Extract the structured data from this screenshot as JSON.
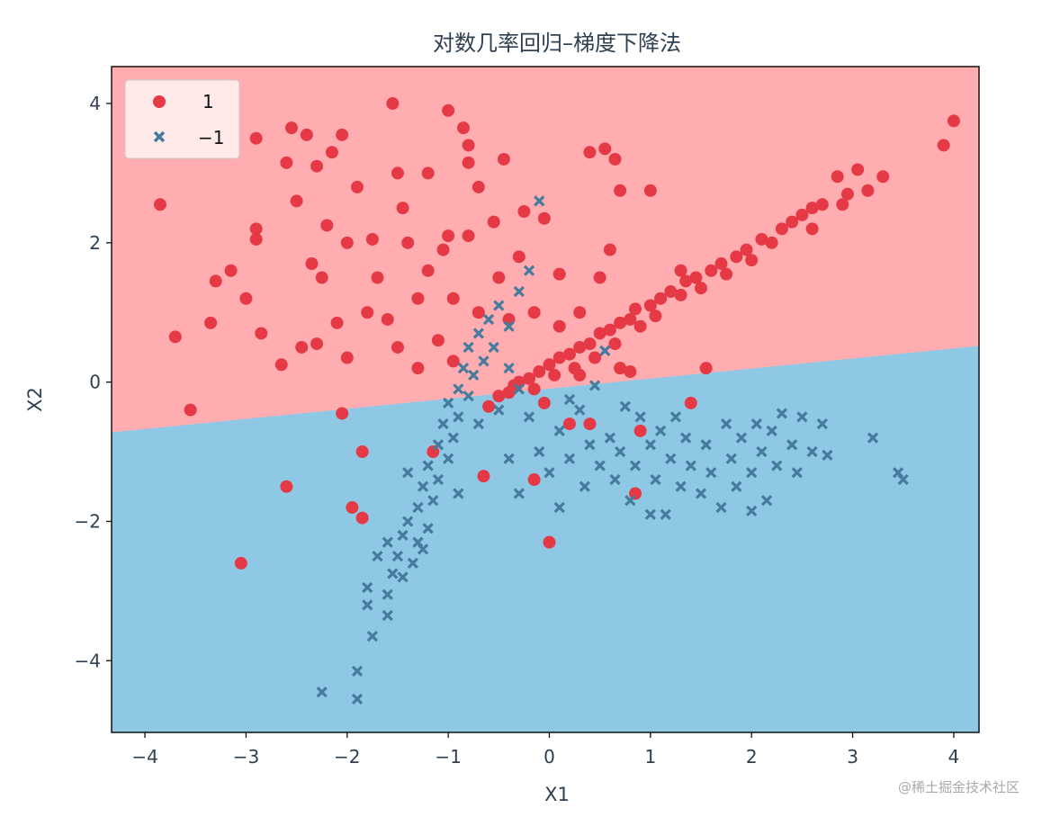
{
  "chart_data": {
    "type": "scatter",
    "title": "对数几率回归–梯度下降法",
    "xlabel": "X1",
    "ylabel": "X2",
    "xlim": [
      -4.33,
      4.25
    ],
    "ylim": [
      -5.03,
      4.53
    ],
    "xticks": [
      -4,
      -3,
      -2,
      -1,
      0,
      1,
      2,
      3,
      4
    ],
    "xtick_labels": [
      "−4",
      "−3",
      "−2",
      "−1",
      "0",
      "1",
      "2",
      "3",
      "4"
    ],
    "yticks": [
      4,
      2,
      0,
      -2,
      -4
    ],
    "ytick_labels": [
      "4",
      "2",
      "0",
      "−2",
      "−4"
    ],
    "legend_position": "top-left",
    "decision_boundary": {
      "x": [
        -4.33,
        4.25
      ],
      "y": [
        -0.72,
        0.52
      ]
    },
    "colors": {
      "region_pos": "#ffadb0",
      "region_neg": "#8fc8e5",
      "pos": "#e63946",
      "neg": "#457b9d",
      "text": "#2f4050"
    },
    "series": [
      {
        "name": "1",
        "marker": "circle",
        "points": [
          [
            -3.85,
            2.55
          ],
          [
            -3.7,
            0.65
          ],
          [
            -3.55,
            -0.4
          ],
          [
            -3.35,
            0.85
          ],
          [
            -3.3,
            1.45
          ],
          [
            -3.15,
            1.6
          ],
          [
            -3.05,
            -2.6
          ],
          [
            -3.0,
            1.2
          ],
          [
            -2.9,
            3.5
          ],
          [
            -2.9,
            2.2
          ],
          [
            -2.9,
            2.05
          ],
          [
            -2.85,
            0.7
          ],
          [
            -2.65,
            0.25
          ],
          [
            -2.6,
            -1.5
          ],
          [
            -2.6,
            3.15
          ],
          [
            -2.55,
            3.65
          ],
          [
            -2.5,
            2.6
          ],
          [
            -2.45,
            0.5
          ],
          [
            -2.4,
            3.55
          ],
          [
            -2.35,
            1.7
          ],
          [
            -2.3,
            3.1
          ],
          [
            -2.3,
            0.55
          ],
          [
            -2.25,
            1.5
          ],
          [
            -2.2,
            2.25
          ],
          [
            -2.15,
            3.3
          ],
          [
            -2.1,
            0.85
          ],
          [
            -2.05,
            3.55
          ],
          [
            -2.0,
            2.0
          ],
          [
            -2.0,
            0.35
          ],
          [
            -2.05,
            -0.45
          ],
          [
            -1.95,
            -1.8
          ],
          [
            -1.9,
            2.8
          ],
          [
            -1.85,
            -1.95
          ],
          [
            -1.85,
            -1.0
          ],
          [
            -1.8,
            1.0
          ],
          [
            -1.75,
            2.05
          ],
          [
            -1.7,
            1.5
          ],
          [
            -1.6,
            0.9
          ],
          [
            -1.5,
            3.0
          ],
          [
            -1.45,
            2.5
          ],
          [
            -1.4,
            2.0
          ],
          [
            -1.5,
            0.5
          ],
          [
            -1.55,
            4.0
          ],
          [
            -1.3,
            1.2
          ],
          [
            -1.3,
            0.2
          ],
          [
            -1.2,
            3.0
          ],
          [
            -1.2,
            1.6
          ],
          [
            -1.15,
            -1.0
          ],
          [
            -1.1,
            0.6
          ],
          [
            -1.05,
            1.9
          ],
          [
            -1.0,
            3.9
          ],
          [
            -1.0,
            2.1
          ],
          [
            -0.95,
            1.2
          ],
          [
            -0.95,
            0.3
          ],
          [
            -0.85,
            3.65
          ],
          [
            -0.8,
            3.15
          ],
          [
            -0.8,
            3.4
          ],
          [
            -0.8,
            2.1
          ],
          [
            -0.7,
            1.0
          ],
          [
            -0.7,
            2.8
          ],
          [
            -0.65,
            -1.35
          ],
          [
            -0.55,
            2.3
          ],
          [
            -0.5,
            1.5
          ],
          [
            -0.45,
            3.2
          ],
          [
            -0.4,
            0.9
          ],
          [
            -0.3,
            1.8
          ],
          [
            -0.25,
            2.45
          ],
          [
            -0.15,
            1.0
          ],
          [
            -0.15,
            -1.4
          ],
          [
            -0.05,
            2.35
          ],
          [
            0.0,
            -2.3
          ],
          [
            0.1,
            1.55
          ],
          [
            0.1,
            0.8
          ],
          [
            0.2,
            -0.6
          ],
          [
            0.4,
            -0.6
          ],
          [
            0.4,
            3.3
          ],
          [
            0.55,
            3.35
          ],
          [
            0.6,
            1.9
          ],
          [
            0.65,
            3.2
          ],
          [
            0.7,
            2.75
          ],
          [
            0.8,
            0.15
          ],
          [
            0.85,
            -1.6
          ],
          [
            0.9,
            -0.7
          ],
          [
            1.0,
            2.75
          ],
          [
            1.4,
            -0.3
          ],
          [
            1.55,
            0.2
          ],
          [
            3.9,
            3.4
          ],
          [
            4.0,
            3.75
          ],
          [
            0.5,
            1.5
          ],
          [
            0.3,
            1.0
          ],
          [
            -0.6,
            -0.35
          ],
          [
            -0.5,
            -0.2
          ],
          [
            -0.4,
            -0.15
          ],
          [
            -0.35,
            -0.05
          ],
          [
            -0.3,
            0.0
          ],
          [
            -0.2,
            0.05
          ],
          [
            -0.15,
            -0.1
          ],
          [
            -0.1,
            0.15
          ],
          [
            0.0,
            0.25
          ],
          [
            0.05,
            0.1
          ],
          [
            0.1,
            0.35
          ],
          [
            0.2,
            0.4
          ],
          [
            0.25,
            0.2
          ],
          [
            0.3,
            0.5
          ],
          [
            0.4,
            0.55
          ],
          [
            0.45,
            0.35
          ],
          [
            0.5,
            0.7
          ],
          [
            0.6,
            0.75
          ],
          [
            0.65,
            0.55
          ],
          [
            0.7,
            0.85
          ],
          [
            0.8,
            0.9
          ],
          [
            0.85,
            1.05
          ],
          [
            0.9,
            0.8
          ],
          [
            1.0,
            1.1
          ],
          [
            1.05,
            0.95
          ],
          [
            1.1,
            1.2
          ],
          [
            1.2,
            1.3
          ],
          [
            1.3,
            1.25
          ],
          [
            1.35,
            1.45
          ],
          [
            1.45,
            1.5
          ],
          [
            1.5,
            1.35
          ],
          [
            1.6,
            1.6
          ],
          [
            1.7,
            1.7
          ],
          [
            1.75,
            1.55
          ],
          [
            1.85,
            1.8
          ],
          [
            1.95,
            1.9
          ],
          [
            2.0,
            1.75
          ],
          [
            2.1,
            2.05
          ],
          [
            2.2,
            2.0
          ],
          [
            2.3,
            2.2
          ],
          [
            2.4,
            2.3
          ],
          [
            2.5,
            2.4
          ],
          [
            2.6,
            2.5
          ],
          [
            2.7,
            2.55
          ],
          [
            2.85,
            2.95
          ],
          [
            2.95,
            2.7
          ],
          [
            3.05,
            3.05
          ],
          [
            3.15,
            2.75
          ],
          [
            3.3,
            2.95
          ],
          [
            2.9,
            2.55
          ],
          [
            2.6,
            2.2
          ],
          [
            1.3,
            1.6
          ],
          [
            0.7,
            0.2
          ],
          [
            0.3,
            0.1
          ],
          [
            -0.05,
            -0.3
          ]
        ]
      },
      {
        "name": "−1",
        "marker": "x",
        "points": [
          [
            -2.25,
            -4.45
          ],
          [
            -1.9,
            -4.55
          ],
          [
            -1.9,
            -4.15
          ],
          [
            -1.75,
            -3.65
          ],
          [
            -1.8,
            -3.2
          ],
          [
            -1.8,
            -2.95
          ],
          [
            -1.6,
            -3.35
          ],
          [
            -1.6,
            -3.05
          ],
          [
            -1.55,
            -2.75
          ],
          [
            -1.5,
            -2.5
          ],
          [
            -1.45,
            -2.8
          ],
          [
            -1.45,
            -2.2
          ],
          [
            -1.4,
            -2.0
          ],
          [
            -1.35,
            -2.6
          ],
          [
            -1.3,
            -1.8
          ],
          [
            -1.3,
            -2.3
          ],
          [
            -1.25,
            -1.5
          ],
          [
            -1.2,
            -2.1
          ],
          [
            -1.2,
            -1.2
          ],
          [
            -1.15,
            -1.7
          ],
          [
            -1.1,
            -0.9
          ],
          [
            -1.1,
            -1.4
          ],
          [
            -1.05,
            -0.6
          ],
          [
            -1.0,
            -1.1
          ],
          [
            -1.0,
            -0.3
          ],
          [
            -0.95,
            -0.8
          ],
          [
            -0.9,
            -0.1
          ],
          [
            -0.9,
            -0.5
          ],
          [
            -0.85,
            0.2
          ],
          [
            -0.8,
            -0.2
          ],
          [
            -0.8,
            0.5
          ],
          [
            -0.75,
            0.1
          ],
          [
            -0.7,
            0.7
          ],
          [
            -0.65,
            0.3
          ],
          [
            -0.6,
            0.9
          ],
          [
            -0.55,
            0.5
          ],
          [
            -0.5,
            1.1
          ],
          [
            -0.4,
            0.8
          ],
          [
            -0.3,
            1.3
          ],
          [
            -0.2,
            1.6
          ],
          [
            -0.1,
            2.6
          ],
          [
            -0.7,
            -0.6
          ],
          [
            -0.5,
            -0.4
          ],
          [
            -0.4,
            0.2
          ],
          [
            -0.3,
            -0.1
          ],
          [
            -1.4,
            -1.3
          ],
          [
            -0.9,
            -1.6
          ],
          [
            -1.25,
            -2.4
          ],
          [
            -1.6,
            -2.3
          ],
          [
            -1.7,
            -2.5
          ],
          [
            -0.4,
            -1.1
          ],
          [
            -0.3,
            -1.6
          ],
          [
            -0.2,
            -0.5
          ],
          [
            -0.1,
            -1.0
          ],
          [
            0.0,
            -1.3
          ],
          [
            0.1,
            -0.7
          ],
          [
            0.1,
            -1.8
          ],
          [
            0.2,
            -1.1
          ],
          [
            0.3,
            -0.4
          ],
          [
            0.35,
            -1.5
          ],
          [
            0.4,
            -0.9
          ],
          [
            0.5,
            -1.2
          ],
          [
            0.55,
            0.45
          ],
          [
            0.6,
            -0.8
          ],
          [
            0.65,
            -1.4
          ],
          [
            0.7,
            -1.0
          ],
          [
            0.75,
            -0.35
          ],
          [
            0.8,
            -1.7
          ],
          [
            0.85,
            -1.2
          ],
          [
            0.9,
            -0.5
          ],
          [
            1.0,
            -0.9
          ],
          [
            1.05,
            -1.4
          ],
          [
            1.1,
            -0.7
          ],
          [
            1.15,
            -1.9
          ],
          [
            1.2,
            -1.1
          ],
          [
            1.25,
            -0.5
          ],
          [
            1.3,
            -1.5
          ],
          [
            1.35,
            -0.8
          ],
          [
            1.4,
            -1.2
          ],
          [
            1.5,
            -1.6
          ],
          [
            1.55,
            -0.9
          ],
          [
            1.6,
            -1.3
          ],
          [
            1.7,
            -1.8
          ],
          [
            1.75,
            -0.6
          ],
          [
            1.8,
            -1.1
          ],
          [
            1.85,
            -1.5
          ],
          [
            1.9,
            -0.8
          ],
          [
            2.0,
            -1.3
          ],
          [
            2.05,
            -0.6
          ],
          [
            2.1,
            -1.0
          ],
          [
            2.15,
            -1.7
          ],
          [
            2.2,
            -0.7
          ],
          [
            2.25,
            -1.2
          ],
          [
            2.3,
            -0.45
          ],
          [
            2.4,
            -0.9
          ],
          [
            2.45,
            -1.3
          ],
          [
            2.5,
            -0.5
          ],
          [
            2.6,
            -1.0
          ],
          [
            2.7,
            -0.6
          ],
          [
            2.75,
            -1.05
          ],
          [
            3.2,
            -0.8
          ],
          [
            3.45,
            -1.3
          ],
          [
            3.5,
            -1.4
          ],
          [
            0.2,
            -0.25
          ],
          [
            0.45,
            -0.05
          ],
          [
            1.0,
            -1.9
          ],
          [
            2.0,
            -1.85
          ]
        ]
      }
    ]
  },
  "watermark": "@稀土掘金技术社区"
}
